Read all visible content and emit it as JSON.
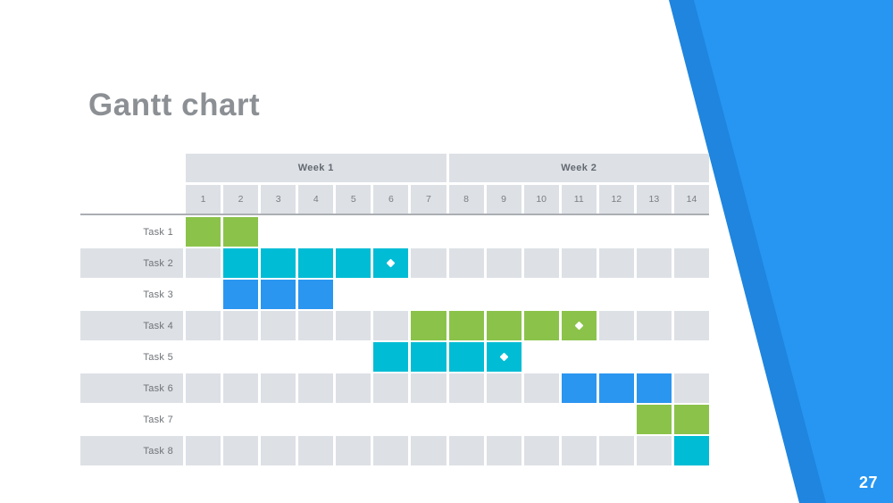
{
  "slide": {
    "title": "Gantt chart",
    "page_number": "27",
    "accent_color": "#2696f2",
    "accent_dark_color": "#1f85de"
  },
  "chart_data": {
    "type": "gantt",
    "title": "Gantt chart",
    "week_headers": [
      {
        "label": "Week 1",
        "days": [
          1,
          7
        ]
      },
      {
        "label": "Week 2",
        "days": [
          8,
          14
        ]
      }
    ],
    "days": [
      "1",
      "2",
      "3",
      "4",
      "5",
      "6",
      "7",
      "8",
      "9",
      "10",
      "11",
      "12",
      "13",
      "14"
    ],
    "tasks": [
      {
        "label": "Task 1",
        "start": 1,
        "end": 2,
        "color": "green",
        "milestone_day": null
      },
      {
        "label": "Task 2",
        "start": 2,
        "end": 6,
        "color": "cyan",
        "milestone_day": 6
      },
      {
        "label": "Task 3",
        "start": 2,
        "end": 4,
        "color": "blue",
        "milestone_day": null
      },
      {
        "label": "Task 4",
        "start": 7,
        "end": 11,
        "color": "green",
        "milestone_day": 11
      },
      {
        "label": "Task 5",
        "start": 6,
        "end": 9,
        "color": "cyan",
        "milestone_day": 9
      },
      {
        "label": "Task 6",
        "start": 11,
        "end": 13,
        "color": "blue",
        "milestone_day": null
      },
      {
        "label": "Task 7",
        "start": 13,
        "end": 14,
        "color": "green",
        "milestone_day": null
      },
      {
        "label": "Task 8",
        "start": 14,
        "end": 14,
        "color": "cyan",
        "milestone_day": null
      }
    ],
    "colors": {
      "green": "#8bc34a",
      "cyan": "#00bcd4",
      "blue": "#2b96f0",
      "alt_row": "#dde1e6"
    },
    "layout_hints": {
      "grid": "14 day columns",
      "alt_rows_shaded": "even tasks"
    }
  }
}
